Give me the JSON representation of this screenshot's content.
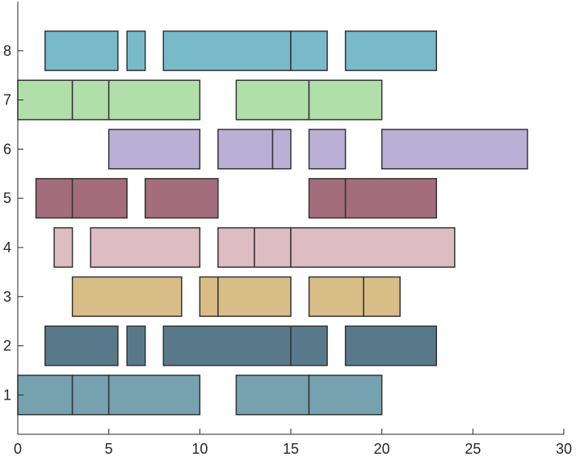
{
  "chart_data": {
    "type": "bar",
    "orientation": "horizontal",
    "stacked": true,
    "title": "",
    "xlabel": "",
    "ylabel": "",
    "xlim": [
      0,
      30
    ],
    "ylim": [
      0.2,
      9
    ],
    "grid": false,
    "x_ticks": [
      0,
      5,
      10,
      15,
      20,
      25,
      30
    ],
    "y_ticks": [
      1,
      2,
      3,
      4,
      5,
      6,
      7,
      8
    ],
    "bar_height": 0.8,
    "rows": [
      {
        "y": 1,
        "color": "#76a1ae",
        "segments": [
          [
            0,
            3
          ],
          [
            3,
            5
          ],
          [
            5,
            10
          ],
          [
            12,
            16
          ],
          [
            16,
            20
          ]
        ]
      },
      {
        "y": 2,
        "color": "#58798a",
        "segments": [
          [
            1.5,
            5.5
          ],
          [
            6,
            7
          ],
          [
            8,
            15
          ],
          [
            15,
            17
          ],
          [
            18,
            23
          ]
        ]
      },
      {
        "y": 3,
        "color": "#d9bd86",
        "segments": [
          [
            3,
            9
          ],
          [
            10,
            11
          ],
          [
            11,
            15
          ],
          [
            16,
            19
          ],
          [
            19,
            21
          ]
        ]
      },
      {
        "y": 4,
        "color": "#ddbcc4",
        "segments": [
          [
            2,
            3
          ],
          [
            4,
            10
          ],
          [
            11,
            13
          ],
          [
            13,
            15
          ],
          [
            15,
            24
          ]
        ]
      },
      {
        "y": 5,
        "color": "#a46d7d",
        "segments": [
          [
            1,
            3
          ],
          [
            3,
            6
          ],
          [
            7,
            11
          ],
          [
            16,
            18
          ],
          [
            18,
            23
          ]
        ]
      },
      {
        "y": 6,
        "color": "#bab0d5",
        "segments": [
          [
            5,
            10
          ],
          [
            11,
            14
          ],
          [
            14,
            15
          ],
          [
            16,
            18
          ],
          [
            20,
            28
          ]
        ]
      },
      {
        "y": 7,
        "color": "#b0dfaa",
        "segments": [
          [
            0,
            3
          ],
          [
            3,
            5
          ],
          [
            5,
            10
          ],
          [
            12,
            16
          ],
          [
            16,
            20
          ]
        ]
      },
      {
        "y": 8,
        "color": "#78b9ca",
        "segments": [
          [
            1.5,
            5.5
          ],
          [
            6,
            7
          ],
          [
            8,
            15
          ],
          [
            15,
            17
          ],
          [
            18,
            23
          ]
        ]
      }
    ]
  }
}
